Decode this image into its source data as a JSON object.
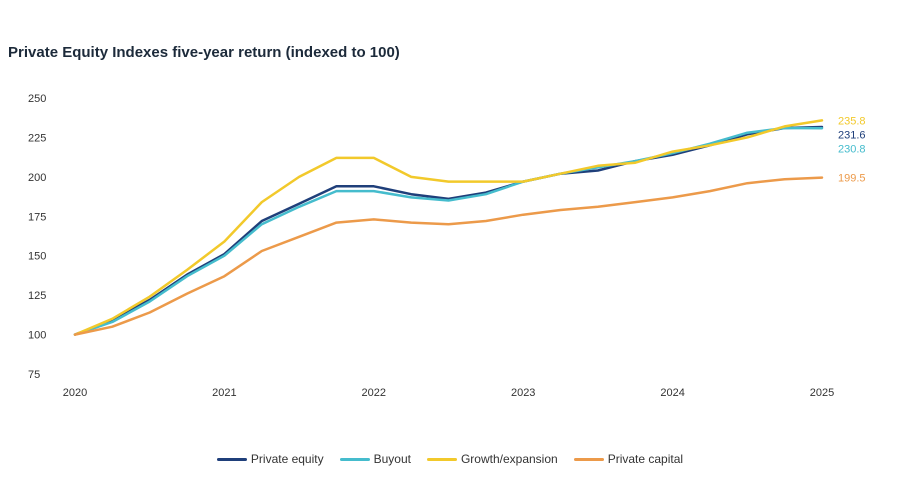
{
  "chart_data": {
    "type": "line",
    "title": "Private Equity Indexes five-year return (indexed to 100)",
    "xlabel": "",
    "ylabel": "",
    "x": [
      2020,
      2020.25,
      2020.5,
      2020.75,
      2021,
      2021.25,
      2021.5,
      2021.75,
      2022,
      2022.25,
      2022.5,
      2022.75,
      2023,
      2023.25,
      2023.5,
      2023.75,
      2024,
      2024.25,
      2024.5,
      2024.75,
      2025
    ],
    "xticks": [
      "2020",
      "2021",
      "2022",
      "2023",
      "2024",
      "2025"
    ],
    "xtick_values": [
      2020,
      2021,
      2022,
      2023,
      2024,
      2025
    ],
    "ylim": [
      75,
      250
    ],
    "yticks": [
      250,
      225,
      200,
      175,
      150,
      125,
      100,
      75
    ],
    "grid": false,
    "legend_position": "bottom-center",
    "series": [
      {
        "name": "Private equity",
        "color": "#1f3f7a",
        "end_label": "231.6",
        "values": [
          100,
          109,
          122,
          138,
          151,
          172,
          183,
          194,
          194,
          189,
          186,
          190,
          197,
          202,
          204,
          210,
          214,
          220,
          227,
          231,
          231.6
        ]
      },
      {
        "name": "Buyout",
        "color": "#45bccd",
        "end_label": "230.8",
        "values": [
          100,
          108,
          121,
          137,
          150,
          170,
          181,
          191,
          191,
          187,
          185,
          189,
          197,
          202,
          206,
          210,
          215,
          221,
          228,
          231,
          230.8
        ]
      },
      {
        "name": "Growth/expansion",
        "color": "#f2c92b",
        "end_label": "235.8",
        "values": [
          100,
          110,
          124,
          141,
          159,
          184,
          200,
          212,
          212,
          200,
          197,
          197,
          197,
          202,
          207,
          209,
          216,
          220,
          225,
          232,
          235.8
        ]
      },
      {
        "name": "Private capital",
        "color": "#ec9a4a",
        "end_label": "199.5",
        "values": [
          100,
          105,
          114,
          126,
          137,
          153,
          162,
          171,
          173,
          171,
          170,
          172,
          176,
          179,
          181,
          184,
          187,
          191,
          196,
          198.5,
          199.5
        ]
      }
    ]
  }
}
